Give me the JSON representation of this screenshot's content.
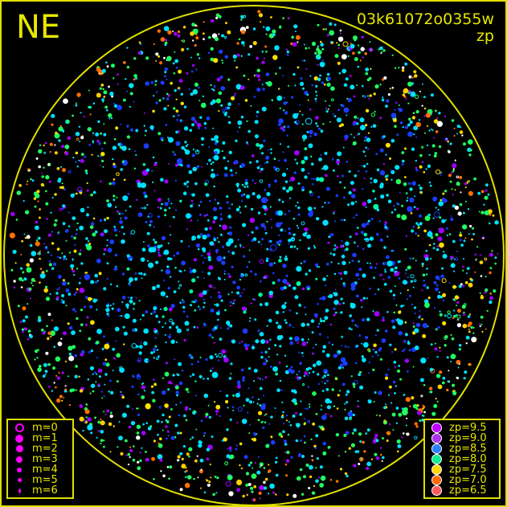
{
  "header": {
    "direction": "NE",
    "observation_id": "03k61072o0355w",
    "color_key": "zp"
  },
  "frame_color": "#e0e000",
  "magnitude_legend": [
    {
      "label": "m=0",
      "symbol": "open-circle"
    },
    {
      "label": "m=1",
      "symbol": "filled-circle"
    },
    {
      "label": "m=2",
      "symbol": "filled-circle"
    },
    {
      "label": "m=3",
      "symbol": "filled-circle"
    },
    {
      "label": "m=4",
      "symbol": "filled-circle"
    },
    {
      "label": "m=5",
      "symbol": "filled-circle"
    },
    {
      "label": "m=6",
      "symbol": "filled-circle"
    }
  ],
  "magnitude_symbol_color": "#ff00ff",
  "zp_legend": [
    {
      "label": "zp=9.5",
      "color": "#c000ff"
    },
    {
      "label": "zp=9.0",
      "color": "#b030f0"
    },
    {
      "label": "zp=8.5",
      "color": "#2a80ff"
    },
    {
      "label": "zp=8.0",
      "color": "#10f090"
    },
    {
      "label": "zp=7.5",
      "color": "#ffd800"
    },
    {
      "label": "zp=7.0",
      "color": "#ff6a00"
    },
    {
      "label": "zp=6.5",
      "color": "#ff5a5a"
    }
  ]
}
